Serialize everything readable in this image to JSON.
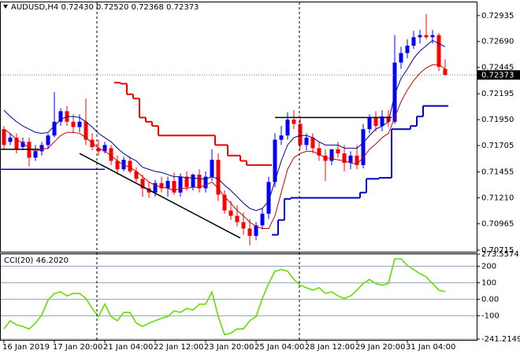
{
  "chart_data": [
    {
      "type": "candlestick",
      "title": "AUDUSD,H4  0.72430 0.72520 0.72368 0.72373",
      "categories": [
        "16 Jan 2019",
        null,
        null,
        null,
        null,
        null,
        null,
        null,
        "17 Jan 20:00",
        null,
        null,
        null,
        null,
        null,
        null,
        null,
        "21 Jan 04:00",
        null,
        null,
        null,
        null,
        null,
        null,
        null,
        "22 Jan 12:00",
        null,
        null,
        null,
        null,
        null,
        null,
        null,
        "23 Jan 20:00",
        null,
        null,
        null,
        null,
        null,
        null,
        null,
        "25 Jan 04:00",
        null,
        null,
        null,
        null,
        null,
        null,
        null,
        "28 Jan 12:00",
        null,
        null,
        null,
        null,
        null,
        null,
        null,
        "29 Jan 20:00",
        null,
        null,
        null,
        null,
        null,
        null,
        null,
        "31 Jan 04:00",
        null,
        null,
        null,
        null,
        null,
        null
      ],
      "ylim": [
        0.707,
        0.7306
      ],
      "yticks": [
        0.72935,
        {
          "value": 0.7269,
          "label": "0.72690"
        },
        0.72445,
        0.72195,
        {
          "value": 0.7195,
          "label": "0.71950"
        },
        0.71705,
        0.71455,
        {
          "value": 0.7121,
          "label": "0.71210"
        },
        0.70965,
        0.70715
      ],
      "up_color": "#0000ff",
      "down_color": "#ff0000",
      "open": [
        0.7186,
        0.7174,
        0.7178,
        0.7169,
        0.7174,
        0.7159,
        0.7165,
        0.7171,
        0.718,
        0.7193,
        0.7203,
        0.7193,
        0.7188,
        0.7193,
        0.7176,
        0.7168,
        0.7165,
        0.7168,
        0.7156,
        0.7148,
        0.7156,
        0.7146,
        0.7139,
        0.713,
        0.7126,
        0.7135,
        0.713,
        0.7137,
        0.7126,
        0.7141,
        0.7131,
        0.7143,
        0.713,
        0.7141,
        0.7157,
        0.7124,
        0.7109,
        0.7104,
        0.7098,
        0.7092,
        0.7085,
        0.7095,
        0.7106,
        0.7136,
        0.7176,
        0.718,
        0.7195,
        0.7191,
        0.7171,
        0.7178,
        0.7168,
        0.7161,
        0.7156,
        0.7167,
        0.7163,
        0.7154,
        0.7161,
        0.7152,
        0.7186,
        0.7197,
        0.7189,
        0.7198,
        0.7193,
        0.7249,
        0.7258,
        0.7265,
        0.7273,
        0.7275,
        0.7273,
        0.7275,
        0.7243
      ],
      "high": [
        0.7189,
        0.7182,
        0.7182,
        0.7178,
        0.7178,
        0.7171,
        0.7174,
        0.7182,
        0.7221,
        0.7206,
        0.7208,
        0.72,
        0.72,
        0.7215,
        0.7182,
        0.7176,
        0.7174,
        0.7171,
        0.7161,
        0.716,
        0.716,
        0.715,
        0.7143,
        0.7136,
        0.7138,
        0.7141,
        0.7141,
        0.7145,
        0.7144,
        0.7146,
        0.7144,
        0.7148,
        0.7146,
        0.7167,
        0.7163,
        0.7128,
        0.7118,
        0.7114,
        0.7107,
        0.7101,
        0.7098,
        0.7111,
        0.7141,
        0.7182,
        0.7189,
        0.7202,
        0.7204,
        0.7197,
        0.7182,
        0.7182,
        0.7174,
        0.7167,
        0.7167,
        0.7174,
        0.7171,
        0.7165,
        0.7171,
        0.7191,
        0.72,
        0.7203,
        0.7204,
        0.7204,
        0.7275,
        0.7264,
        0.7271,
        0.7279,
        0.728,
        0.7295,
        0.728,
        0.7277,
        0.7252
      ],
      "low": [
        0.7167,
        0.7171,
        0.7163,
        0.7166,
        0.7151,
        0.7156,
        0.7161,
        0.7167,
        0.7178,
        0.7189,
        0.7189,
        0.7182,
        0.7183,
        0.7171,
        0.7166,
        0.7161,
        0.7163,
        0.7152,
        0.7143,
        0.7146,
        0.7144,
        0.7136,
        0.7122,
        0.7121,
        0.7122,
        0.7126,
        0.7122,
        0.7124,
        0.7122,
        0.7128,
        0.7128,
        0.7126,
        0.7126,
        0.7137,
        0.7118,
        0.7106,
        0.71,
        0.7094,
        0.7086,
        0.7076,
        0.7081,
        0.7091,
        0.7101,
        0.7131,
        0.7171,
        0.7176,
        0.7186,
        0.7167,
        0.7166,
        0.7163,
        0.7156,
        0.7137,
        0.7152,
        0.7159,
        0.7146,
        0.7148,
        0.7148,
        0.7149,
        0.7182,
        0.7184,
        0.7184,
        0.7188,
        0.7191,
        0.7243,
        0.7253,
        0.7262,
        0.7267,
        0.7271,
        0.7267,
        0.7241,
        0.72368
      ],
      "close": [
        0.7171,
        0.7178,
        0.7167,
        0.7174,
        0.7159,
        0.7165,
        0.7171,
        0.718,
        0.7193,
        0.7203,
        0.7193,
        0.7188,
        0.7193,
        0.7176,
        0.7169,
        0.7165,
        0.7171,
        0.7156,
        0.7148,
        0.7157,
        0.7146,
        0.7139,
        0.713,
        0.7126,
        0.7135,
        0.713,
        0.7137,
        0.7126,
        0.7141,
        0.7131,
        0.7143,
        0.713,
        0.7141,
        0.7157,
        0.7124,
        0.7109,
        0.7104,
        0.7098,
        0.7092,
        0.7085,
        0.7095,
        0.7106,
        0.7136,
        0.7176,
        0.718,
        0.7195,
        0.7191,
        0.7171,
        0.7178,
        0.7168,
        0.7161,
        0.7156,
        0.7167,
        0.7163,
        0.7154,
        0.7161,
        0.7152,
        0.7186,
        0.7197,
        0.7189,
        0.7198,
        0.7193,
        0.7249,
        0.7258,
        0.7265,
        0.7273,
        0.7275,
        0.7273,
        0.7275,
        0.7245,
        0.72373
      ],
      "lines": [
        {
          "style": "line",
          "color": "#000099",
          "width": 1,
          "values": [
            0.7204,
            0.7198,
            0.7193,
            0.7189,
            0.7186,
            0.7183,
            0.7182,
            0.7183,
            0.7189,
            0.7195,
            0.7198,
            0.7198,
            0.7197,
            0.7193,
            0.7188,
            0.7182,
            0.7178,
            0.7174,
            0.7168,
            0.7163,
            0.7159,
            0.7156,
            0.715,
            0.7148,
            0.7146,
            0.7145,
            0.7143,
            0.7141,
            0.7141,
            0.714,
            0.714,
            0.7139,
            0.7139,
            0.7141,
            0.7139,
            0.7133,
            0.7128,
            0.7122,
            0.7116,
            0.7111,
            0.7109,
            0.7111,
            0.7118,
            0.7137,
            0.7156,
            0.7171,
            0.7178,
            0.718,
            0.718,
            0.7178,
            0.7174,
            0.7171,
            0.7171,
            0.7171,
            0.7168,
            0.7168,
            0.7168,
            0.7173,
            0.718,
            0.7186,
            0.7189,
            0.7193,
            0.7219,
            0.7234,
            0.7243,
            0.7253,
            0.726,
            0.7265,
            0.727,
            0.7267,
            0.7264
          ]
        },
        {
          "style": "line",
          "color": "#cc0000",
          "width": 1,
          "values": [
            0.7186,
            0.7182,
            0.7176,
            0.7173,
            0.7168,
            0.7165,
            0.7167,
            0.7168,
            0.7174,
            0.718,
            0.7183,
            0.7183,
            0.7182,
            0.7178,
            0.7173,
            0.7168,
            0.7165,
            0.7161,
            0.7156,
            0.7152,
            0.715,
            0.7146,
            0.7141,
            0.7136,
            0.7133,
            0.7131,
            0.713,
            0.7128,
            0.713,
            0.713,
            0.7131,
            0.7131,
            0.7133,
            0.7136,
            0.713,
            0.7122,
            0.7116,
            0.7109,
            0.7104,
            0.7098,
            0.7094,
            0.7092,
            0.7092,
            0.7104,
            0.7126,
            0.7148,
            0.7159,
            0.7163,
            0.7165,
            0.7165,
            0.7162,
            0.7159,
            0.7158,
            0.7157,
            0.7156,
            0.7154,
            0.7153,
            0.7159,
            0.7167,
            0.7172,
            0.7178,
            0.7182,
            0.7197,
            0.7212,
            0.7223,
            0.7232,
            0.7239,
            0.7244,
            0.7247,
            0.7247,
            0.7243
          ]
        },
        {
          "style": "step",
          "color": "#ee0000",
          "width": 2,
          "values": [
            null,
            null,
            null,
            null,
            null,
            null,
            null,
            null,
            null,
            null,
            null,
            null,
            null,
            null,
            null,
            null,
            null,
            null,
            0.723,
            0.7229,
            0.7219,
            0.7215,
            0.7197,
            0.7193,
            0.7189,
            0.718,
            0.718,
            0.718,
            0.718,
            0.718,
            0.718,
            0.718,
            0.718,
            0.718,
            0.7171,
            0.7171,
            0.7161,
            0.7161,
            0.7156,
            0.7152,
            0.7152,
            0.7152,
            0.7152,
            null,
            null,
            null,
            null,
            null,
            null,
            null,
            null,
            null,
            null,
            null,
            null,
            null,
            null,
            null,
            null,
            null,
            null,
            null,
            null,
            null,
            null,
            null,
            null,
            null,
            null,
            null,
            null
          ]
        },
        {
          "style": "step",
          "color": "#0000cc",
          "width": 2,
          "values": [
            null,
            null,
            null,
            null,
            null,
            null,
            null,
            null,
            null,
            null,
            null,
            null,
            null,
            null,
            null,
            null,
            null,
            null,
            null,
            null,
            null,
            null,
            null,
            null,
            null,
            null,
            null,
            null,
            null,
            null,
            null,
            null,
            null,
            null,
            null,
            null,
            null,
            null,
            null,
            null,
            null,
            null,
            null,
            0.7086,
            0.71,
            0.712,
            0.7121,
            0.7121,
            0.7121,
            0.7121,
            0.7121,
            0.7121,
            0.7121,
            0.7121,
            0.7121,
            0.7121,
            0.7121,
            0.7126,
            0.7139,
            0.7139,
            0.714,
            0.714,
            0.7186,
            0.7186,
            0.7186,
            0.7189,
            0.7198,
            0.7208,
            0.7208,
            0.7208,
            0.7208
          ]
        }
      ],
      "trendlines": [
        {
          "x": [
            12,
            37.5
          ],
          "y": [
            0.7163,
            0.7083
          ],
          "color": "#000000"
        },
        {
          "x": [
            43,
            61.5
          ],
          "y": [
            0.7197,
            0.7197
          ],
          "color": "#000000"
        },
        {
          "x": [
            -0.6,
            5.6
          ],
          "y": [
            0.7167,
            0.7167
          ],
          "color": "#000000"
        },
        {
          "x": [
            -0.6,
            16
          ],
          "y": [
            0.7148,
            0.7148
          ],
          "color": "#0000cc"
        }
      ]
    },
    {
      "type": "line",
      "title": "CCI(20) 46.2020",
      "ylim": [
        -241.2149,
        273.5574
      ],
      "yticks": [
        273.5574,
        200,
        100,
        {
          "value": 0,
          "label": "0.00"
        },
        -100,
        -241.2149
      ],
      "color": "#66dd00",
      "values": [
        -180,
        -130,
        -155,
        -165,
        -180,
        -145,
        -95,
        -5,
        35,
        45,
        20,
        35,
        35,
        5,
        -55,
        -105,
        -30,
        -105,
        -130,
        -80,
        -80,
        -145,
        -165,
        -145,
        -130,
        -115,
        -105,
        -70,
        -80,
        -55,
        -65,
        -30,
        -30,
        45,
        -105,
        -215,
        -205,
        -180,
        -180,
        -130,
        -105,
        5,
        95,
        170,
        180,
        170,
        120,
        85,
        70,
        55,
        70,
        35,
        45,
        20,
        5,
        20,
        55,
        95,
        120,
        95,
        85,
        95,
        245,
        245,
        205,
        180,
        155,
        135,
        95,
        55,
        46.202
      ]
    }
  ]
}
